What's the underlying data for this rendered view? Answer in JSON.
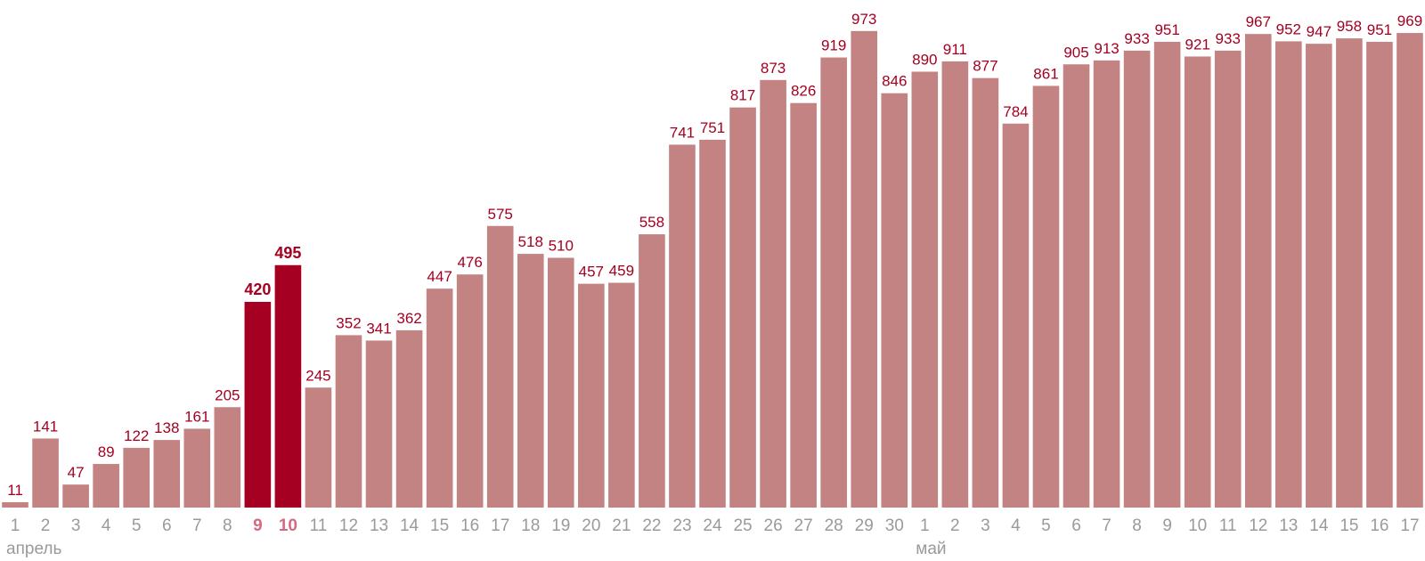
{
  "chart_data": {
    "type": "bar",
    "title": "",
    "xlabel": "",
    "ylabel": "",
    "ylim": [
      0,
      1000
    ],
    "grid": false,
    "categories": [
      "1",
      "2",
      "3",
      "4",
      "5",
      "6",
      "7",
      "8",
      "9",
      "10",
      "11",
      "12",
      "13",
      "14",
      "15",
      "16",
      "17",
      "18",
      "19",
      "20",
      "21",
      "22",
      "23",
      "24",
      "25",
      "26",
      "27",
      "28",
      "29",
      "30",
      "1",
      "2",
      "3",
      "4",
      "5",
      "6",
      "7",
      "8",
      "9",
      "10",
      "11",
      "12",
      "13",
      "14",
      "15",
      "16",
      "17"
    ],
    "values": [
      11,
      141,
      47,
      89,
      122,
      138,
      161,
      205,
      420,
      495,
      245,
      352,
      341,
      362,
      447,
      476,
      575,
      518,
      510,
      457,
      459,
      558,
      741,
      751,
      817,
      873,
      826,
      919,
      973,
      846,
      890,
      911,
      877,
      784,
      861,
      905,
      913,
      933,
      951,
      921,
      933,
      967,
      952,
      947,
      958,
      951,
      969
    ],
    "highlighted": [
      8,
      9
    ],
    "month_labels": [
      {
        "label": "апрель",
        "start_index": 0
      },
      {
        "label": "май",
        "start_index": 30
      }
    ],
    "colors": {
      "bar": "#c38383",
      "bar_highlight": "#a50021",
      "value_label": "#a50021",
      "tick_label": "#9a9a9a",
      "tick_label_highlight": "#d26b82",
      "month_label": "#9a9a9a"
    }
  }
}
